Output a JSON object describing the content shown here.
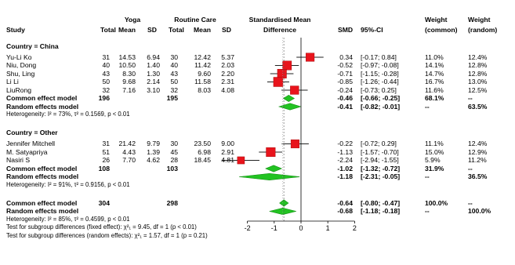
{
  "header": {
    "study": "Study",
    "yoga_group": "Yoga",
    "routine_group": "Routine Care",
    "smd_title_1": "Standardised Mean",
    "smd_title_2": "Difference",
    "total": "Total",
    "mean": "Mean",
    "sd": "SD",
    "smd": "SMD",
    "ci": "95%-CI",
    "weight": "Weight",
    "common_paren": "(common)",
    "random_paren": "(random)"
  },
  "chart_data": {
    "type": "forest",
    "x_ticks": [
      "-2",
      "-1",
      "0",
      "1",
      "2"
    ],
    "xlim": [
      -2,
      2
    ],
    "reference_line": 0,
    "common_effect_line": -0.64,
    "random_effect_line": -0.68,
    "groups": [
      {
        "title": "Country = China",
        "studies": [
          {
            "study": "Yu-Li Ko",
            "yoga_total": "31",
            "yoga_mean": "14.53",
            "yoga_sd": "6.94",
            "rc_total": "30",
            "rc_mean": "12.42",
            "rc_sd": "5.37",
            "smd": 0.34,
            "lower": -0.17,
            "upper": 0.84,
            "smd_text": "0.34",
            "ci_text": "[-0.17;  0.84]",
            "w_common": "11.0%",
            "w_random": "12.4%"
          },
          {
            "study": "Niu, Dong",
            "yoga_total": "40",
            "yoga_mean": "10.50",
            "yoga_sd": "1.40",
            "rc_total": "40",
            "rc_mean": "11.42",
            "rc_sd": "2.03",
            "smd": -0.52,
            "lower": -0.97,
            "upper": -0.08,
            "smd_text": "-0.52",
            "ci_text": "[-0.97; -0.08]",
            "w_common": "14.1%",
            "w_random": "12.8%"
          },
          {
            "study": "Shu, Ling",
            "yoga_total": "43",
            "yoga_mean": "8.30",
            "yoga_sd": "1.30",
            "rc_total": "43",
            "rc_mean": "9.60",
            "rc_sd": "2.20",
            "smd": -0.71,
            "lower": -1.15,
            "upper": -0.28,
            "smd_text": "-0.71",
            "ci_text": "[-1.15; -0.28]",
            "w_common": "14.7%",
            "w_random": "12.8%"
          },
          {
            "study": "Li Li",
            "yoga_total": "50",
            "yoga_mean": "9.68",
            "yoga_sd": "2.14",
            "rc_total": "50",
            "rc_mean": "11.58",
            "rc_sd": "2.31",
            "smd": -0.85,
            "lower": -1.26,
            "upper": -0.44,
            "smd_text": "-0.85",
            "ci_text": "[-1.26; -0.44]",
            "w_common": "16.7%",
            "w_random": "13.0%"
          },
          {
            "study": "LiuRong",
            "yoga_total": "32",
            "yoga_mean": "7.16",
            "yoga_sd": "3.10",
            "rc_total": "32",
            "rc_mean": "8.03",
            "rc_sd": "4.08",
            "smd": -0.24,
            "lower": -0.73,
            "upper": 0.25,
            "smd_text": "-0.24",
            "ci_text": "[-0.73;  0.25]",
            "w_common": "11.6%",
            "w_random": "12.5%"
          }
        ],
        "common": {
          "label": "Common effect model",
          "yoga_total": "196",
          "rc_total": "195",
          "smd": -0.46,
          "lower": -0.66,
          "upper": -0.25,
          "smd_text": "-0.46",
          "ci_text": "[-0.66; -0.25]",
          "w_common": "68.1%",
          "w_random": "--"
        },
        "random": {
          "label": "Random effects model",
          "smd": -0.41,
          "lower": -0.82,
          "upper": -0.01,
          "smd_text": "-0.41",
          "ci_text": "[-0.82; -0.01]",
          "w_common": "--",
          "w_random": "63.5%"
        },
        "heterogeneity": "Heterogeneity: I² = 73%, τ² = 0.1569, p < 0.01"
      },
      {
        "title": "Country = Other",
        "studies": [
          {
            "study": "Jennifer Mitchell",
            "yoga_total": "31",
            "yoga_mean": "21.42",
            "yoga_sd": "9.79",
            "rc_total": "30",
            "rc_mean": "23.50",
            "rc_sd": "9.00",
            "smd": -0.22,
            "lower": -0.72,
            "upper": 0.29,
            "smd_text": "-0.22",
            "ci_text": "[-0.72;  0.29]",
            "w_common": "11.1%",
            "w_random": "12.4%"
          },
          {
            "study": "M. Satyapriya",
            "yoga_total": "51",
            "yoga_mean": "4.43",
            "yoga_sd": "1.39",
            "rc_total": "45",
            "rc_mean": "6.98",
            "rc_sd": "2.91",
            "smd": -1.13,
            "lower": -1.57,
            "upper": -0.7,
            "smd_text": "-1.13",
            "ci_text": "[-1.57; -0.70]",
            "w_common": "15.0%",
            "w_random": "12.9%"
          },
          {
            "study": "Nasiri S",
            "yoga_total": "26",
            "yoga_mean": "7.70",
            "yoga_sd": "4.62",
            "rc_total": "28",
            "rc_mean": "18.45",
            "rc_sd": "4.81",
            "smd": -2.24,
            "lower": -2.94,
            "upper": -1.55,
            "smd_text": "-2.24",
            "ci_text": "[-2.94; -1.55]",
            "w_common": "5.9%",
            "w_random": "11.2%"
          }
        ],
        "common": {
          "label": "Common effect model",
          "yoga_total": "108",
          "rc_total": "103",
          "smd": -1.02,
          "lower": -1.32,
          "upper": -0.72,
          "smd_text": "-1.02",
          "ci_text": "[-1.32; -0.72]",
          "w_common": "31.9%",
          "w_random": "--"
        },
        "random": {
          "label": "Random effects model",
          "smd": -1.18,
          "lower": -2.31,
          "upper": -0.05,
          "smd_text": "-1.18",
          "ci_text": "[-2.31; -0.05]",
          "w_common": "--",
          "w_random": "36.5%"
        },
        "heterogeneity": "Heterogeneity: I² = 91%, τ² = 0.9156, p < 0.01"
      }
    ],
    "overall": {
      "common": {
        "label": "Common effect model",
        "yoga_total": "304",
        "rc_total": "298",
        "smd": -0.64,
        "lower": -0.8,
        "upper": -0.47,
        "smd_text": "-0.64",
        "ci_text": "[-0.80; -0.47]",
        "w_common": "100.0%",
        "w_random": "--"
      },
      "random": {
        "label": "Random effects model",
        "smd": -0.68,
        "lower": -1.18,
        "upper": -0.18,
        "smd_text": "-0.68",
        "ci_text": "[-1.18; -0.18]",
        "w_common": "--",
        "w_random": "100.0%"
      },
      "heterogeneity": "Heterogeneity: I² = 85%, τ² = 0.4599, p < 0.01",
      "subgroup_fixed": "Test for subgroup differences (fixed effect): χ²₁ = 9.45, df = 1 (p < 0.01)",
      "subgroup_random": "Test for subgroup differences (random effects): χ²₁ = 1.57, df = 1 (p = 0.21)"
    },
    "colors": {
      "square": "#e8141c",
      "diamond": "#22c322",
      "diamond_stroke": "#159015",
      "ci_line": "#222222"
    }
  }
}
